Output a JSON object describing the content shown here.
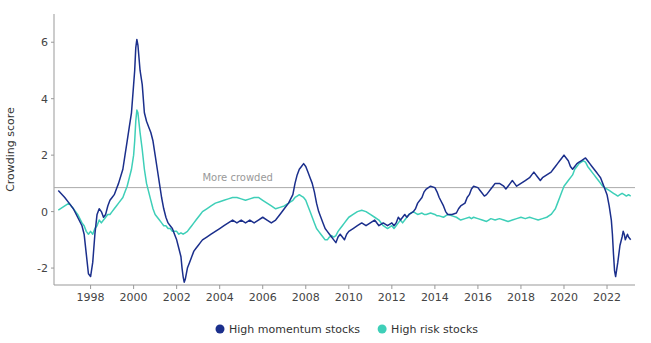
{
  "chart_data": {
    "type": "line",
    "y_label": "Crowding score",
    "annotations": [
      {
        "text": "More crowded",
        "x": 2003.2,
        "y": 1.0
      }
    ],
    "hline_y": 0.85,
    "xlim": [
      1996.3,
      2023.3
    ],
    "xticks": [
      1998,
      2000,
      2002,
      2004,
      2006,
      2008,
      2010,
      2012,
      2014,
      2016,
      2018,
      2020,
      2022
    ],
    "ylim": [
      -2.6,
      7.0
    ],
    "yticks": [
      -2,
      0,
      2,
      4,
      6
    ],
    "grid": false,
    "legend": "bottom",
    "series": [
      {
        "name": "High momentum stocks",
        "color": "#1B2F8C",
        "x": [
          1996.5,
          1996.8,
          1997.0,
          1997.2,
          1997.4,
          1997.6,
          1997.7,
          1997.8,
          1997.9,
          1998.0,
          1998.1,
          1998.2,
          1998.3,
          1998.4,
          1998.5,
          1998.6,
          1998.7,
          1998.8,
          1998.9,
          1999.0,
          1999.1,
          1999.2,
          1999.3,
          1999.5,
          1999.6,
          1999.7,
          1999.8,
          1999.9,
          2000.0,
          2000.05,
          2000.1,
          2000.15,
          2000.2,
          2000.3,
          2000.4,
          2000.5,
          2000.6,
          2000.7,
          2000.8,
          2000.9,
          2001.0,
          2001.1,
          2001.2,
          2001.3,
          2001.4,
          2001.5,
          2001.6,
          2001.7,
          2001.8,
          2001.9,
          2002.0,
          2002.1,
          2002.2,
          2002.25,
          2002.3,
          2002.35,
          2002.4,
          2002.5,
          2002.6,
          2002.7,
          2002.8,
          2002.9,
          2003.0,
          2003.1,
          2003.2,
          2003.4,
          2003.6,
          2003.8,
          2004.0,
          2004.2,
          2004.4,
          2004.6,
          2004.8,
          2005.0,
          2005.2,
          2005.4,
          2005.6,
          2005.8,
          2006.0,
          2006.2,
          2006.4,
          2006.6,
          2006.8,
          2007.0,
          2007.2,
          2007.4,
          2007.5,
          2007.6,
          2007.7,
          2007.8,
          2007.9,
          2008.0,
          2008.1,
          2008.2,
          2008.3,
          2008.4,
          2008.5,
          2008.6,
          2008.7,
          2008.8,
          2008.9,
          2009.0,
          2009.1,
          2009.2,
          2009.3,
          2009.4,
          2009.5,
          2009.6,
          2009.7,
          2009.8,
          2009.9,
          2010.0,
          2010.2,
          2010.4,
          2010.6,
          2010.8,
          2011.0,
          2011.2,
          2011.4,
          2011.6,
          2011.8,
          2012.0,
          2012.1,
          2012.2,
          2012.3,
          2012.4,
          2012.5,
          2012.6,
          2012.7,
          2012.8,
          2013.0,
          2013.1,
          2013.2,
          2013.4,
          2013.5,
          2013.6,
          2013.8,
          2014.0,
          2014.1,
          2014.2,
          2014.4,
          2014.5,
          2014.6,
          2014.8,
          2015.0,
          2015.1,
          2015.2,
          2015.4,
          2015.5,
          2015.6,
          2015.7,
          2015.8,
          2016.0,
          2016.1,
          2016.2,
          2016.3,
          2016.4,
          2016.5,
          2016.6,
          2016.7,
          2016.8,
          2017.0,
          2017.2,
          2017.3,
          2017.4,
          2017.5,
          2017.6,
          2017.7,
          2017.8,
          2018.0,
          2018.2,
          2018.4,
          2018.5,
          2018.6,
          2018.8,
          2018.9,
          2019.0,
          2019.2,
          2019.4,
          2019.5,
          2019.6,
          2019.7,
          2019.8,
          2019.9,
          2020.0,
          2020.1,
          2020.2,
          2020.3,
          2020.4,
          2020.5,
          2020.6,
          2020.7,
          2020.8,
          2020.9,
          2021.0,
          2021.1,
          2021.2,
          2021.3,
          2021.4,
          2021.5,
          2021.6,
          2021.7,
          2021.8,
          2021.9,
          2022.0,
          2022.1,
          2022.2,
          2022.25,
          2022.3,
          2022.35,
          2022.4,
          2022.5,
          2022.6,
          2022.7,
          2022.75,
          2022.8,
          2022.85,
          2022.9,
          2022.95,
          2023.0,
          2023.1
        ],
        "values": [
          0.75,
          0.5,
          0.3,
          0.1,
          -0.2,
          -0.5,
          -0.8,
          -1.5,
          -2.2,
          -2.3,
          -1.8,
          -0.8,
          -0.1,
          0.1,
          0.0,
          -0.2,
          -0.1,
          0.2,
          0.4,
          0.5,
          0.6,
          0.8,
          1.0,
          1.5,
          2.0,
          2.5,
          3.0,
          3.5,
          4.5,
          5.0,
          5.8,
          6.1,
          5.9,
          5.0,
          4.5,
          3.5,
          3.2,
          3.0,
          2.8,
          2.5,
          2.0,
          1.5,
          1.0,
          0.5,
          0.1,
          -0.2,
          -0.4,
          -0.5,
          -0.6,
          -0.8,
          -1.0,
          -1.3,
          -1.6,
          -2.0,
          -2.3,
          -2.5,
          -2.4,
          -2.0,
          -1.8,
          -1.6,
          -1.4,
          -1.3,
          -1.2,
          -1.1,
          -1.0,
          -0.9,
          -0.8,
          -0.7,
          -0.6,
          -0.5,
          -0.4,
          -0.3,
          -0.4,
          -0.3,
          -0.4,
          -0.3,
          -0.4,
          -0.3,
          -0.2,
          -0.3,
          -0.4,
          -0.3,
          -0.1,
          0.1,
          0.3,
          0.6,
          1.0,
          1.3,
          1.5,
          1.6,
          1.7,
          1.6,
          1.4,
          1.2,
          1.0,
          0.7,
          0.3,
          0.0,
          -0.2,
          -0.4,
          -0.6,
          -0.7,
          -0.8,
          -0.9,
          -1.0,
          -1.1,
          -0.9,
          -0.8,
          -0.9,
          -1.0,
          -0.8,
          -0.7,
          -0.6,
          -0.5,
          -0.4,
          -0.5,
          -0.4,
          -0.3,
          -0.5,
          -0.4,
          -0.5,
          -0.4,
          -0.5,
          -0.4,
          -0.2,
          -0.3,
          -0.2,
          -0.1,
          -0.2,
          -0.1,
          0.0,
          0.1,
          0.3,
          0.5,
          0.7,
          0.8,
          0.9,
          0.85,
          0.7,
          0.5,
          0.2,
          0.0,
          -0.1,
          -0.1,
          -0.05,
          0.1,
          0.2,
          0.3,
          0.5,
          0.6,
          0.8,
          0.9,
          0.85,
          0.75,
          0.65,
          0.55,
          0.6,
          0.7,
          0.8,
          0.9,
          1.0,
          1.0,
          0.9,
          0.8,
          0.9,
          1.0,
          1.1,
          1.0,
          0.9,
          1.0,
          1.1,
          1.2,
          1.3,
          1.4,
          1.2,
          1.1,
          1.2,
          1.3,
          1.4,
          1.5,
          1.6,
          1.7,
          1.8,
          1.9,
          2.0,
          1.9,
          1.8,
          1.6,
          1.5,
          1.6,
          1.7,
          1.75,
          1.8,
          1.85,
          1.9,
          1.8,
          1.7,
          1.6,
          1.5,
          1.4,
          1.3,
          1.2,
          1.0,
          0.8,
          0.6,
          0.2,
          -0.3,
          -0.8,
          -1.5,
          -2.1,
          -2.3,
          -1.8,
          -1.2,
          -0.9,
          -0.7,
          -0.8,
          -1.0,
          -0.9,
          -0.8,
          -0.9,
          -1.0
        ]
      },
      {
        "name": "High risk stocks",
        "color": "#3ECFB8",
        "x": [
          1996.5,
          1996.8,
          1997.0,
          1997.2,
          1997.4,
          1997.6,
          1997.7,
          1997.8,
          1997.9,
          1998.0,
          1998.1,
          1998.2,
          1998.3,
          1998.4,
          1998.5,
          1998.6,
          1998.7,
          1998.8,
          1998.9,
          1999.0,
          1999.1,
          1999.2,
          1999.3,
          1999.5,
          1999.6,
          1999.7,
          1999.8,
          1999.9,
          2000.0,
          2000.05,
          2000.1,
          2000.15,
          2000.2,
          2000.3,
          2000.4,
          2000.5,
          2000.6,
          2000.7,
          2000.8,
          2000.9,
          2001.0,
          2001.1,
          2001.2,
          2001.3,
          2001.4,
          2001.5,
          2001.6,
          2001.7,
          2001.8,
          2001.9,
          2002.0,
          2002.1,
          2002.2,
          2002.3,
          2002.4,
          2002.5,
          2002.6,
          2002.7,
          2002.8,
          2002.9,
          2003.0,
          2003.1,
          2003.2,
          2003.4,
          2003.6,
          2003.8,
          2004.0,
          2004.2,
          2004.4,
          2004.6,
          2004.8,
          2005.0,
          2005.2,
          2005.4,
          2005.6,
          2005.8,
          2006.0,
          2006.2,
          2006.4,
          2006.6,
          2006.8,
          2007.0,
          2007.2,
          2007.4,
          2007.5,
          2007.6,
          2007.7,
          2007.8,
          2007.9,
          2008.0,
          2008.1,
          2008.2,
          2008.3,
          2008.4,
          2008.5,
          2008.6,
          2008.7,
          2008.8,
          2008.9,
          2009.0,
          2009.1,
          2009.2,
          2009.3,
          2009.4,
          2009.5,
          2009.6,
          2009.7,
          2009.8,
          2009.9,
          2010.0,
          2010.2,
          2010.4,
          2010.6,
          2010.8,
          2011.0,
          2011.2,
          2011.4,
          2011.6,
          2011.8,
          2012.0,
          2012.1,
          2012.2,
          2012.3,
          2012.4,
          2012.5,
          2012.6,
          2012.7,
          2012.8,
          2013.0,
          2013.1,
          2013.2,
          2013.4,
          2013.5,
          2013.6,
          2013.8,
          2014.0,
          2014.1,
          2014.2,
          2014.4,
          2014.5,
          2014.6,
          2014.8,
          2015.0,
          2015.2,
          2015.4,
          2015.6,
          2015.7,
          2015.8,
          2016.0,
          2016.2,
          2016.4,
          2016.5,
          2016.6,
          2016.8,
          2017.0,
          2017.2,
          2017.4,
          2017.6,
          2017.8,
          2018.0,
          2018.2,
          2018.4,
          2018.6,
          2018.8,
          2019.0,
          2019.2,
          2019.4,
          2019.5,
          2019.6,
          2019.7,
          2019.8,
          2019.9,
          2020.0,
          2020.2,
          2020.4,
          2020.5,
          2020.6,
          2020.7,
          2020.8,
          2020.9,
          2021.0,
          2021.1,
          2021.2,
          2021.3,
          2021.4,
          2021.5,
          2021.6,
          2021.7,
          2021.8,
          2021.9,
          2022.0,
          2022.1,
          2022.2,
          2022.3,
          2022.4,
          2022.5,
          2022.6,
          2022.7,
          2022.8,
          2022.9,
          2023.0,
          2023.1
        ],
        "values": [
          0.05,
          0.2,
          0.3,
          0.1,
          -0.1,
          -0.4,
          -0.5,
          -0.7,
          -0.8,
          -0.7,
          -0.8,
          -0.6,
          -0.5,
          -0.3,
          -0.4,
          -0.3,
          -0.2,
          -0.1,
          -0.1,
          0.0,
          0.1,
          0.2,
          0.3,
          0.5,
          0.7,
          0.9,
          1.2,
          1.5,
          2.0,
          2.5,
          3.2,
          3.6,
          3.5,
          2.8,
          2.2,
          1.5,
          1.0,
          0.7,
          0.4,
          0.1,
          -0.1,
          -0.2,
          -0.3,
          -0.4,
          -0.5,
          -0.5,
          -0.6,
          -0.6,
          -0.7,
          -0.7,
          -0.7,
          -0.8,
          -0.75,
          -0.8,
          -0.75,
          -0.7,
          -0.6,
          -0.5,
          -0.4,
          -0.3,
          -0.2,
          -0.1,
          0.0,
          0.1,
          0.2,
          0.3,
          0.35,
          0.4,
          0.45,
          0.5,
          0.5,
          0.45,
          0.4,
          0.45,
          0.5,
          0.5,
          0.4,
          0.3,
          0.2,
          0.1,
          0.15,
          0.2,
          0.3,
          0.4,
          0.5,
          0.55,
          0.6,
          0.55,
          0.5,
          0.4,
          0.2,
          0.0,
          -0.2,
          -0.4,
          -0.6,
          -0.7,
          -0.8,
          -0.9,
          -1.0,
          -1.0,
          -0.9,
          -0.85,
          -0.9,
          -0.85,
          -0.7,
          -0.6,
          -0.5,
          -0.4,
          -0.3,
          -0.2,
          -0.1,
          0.0,
          0.05,
          0.0,
          -0.1,
          -0.2,
          -0.3,
          -0.5,
          -0.6,
          -0.5,
          -0.6,
          -0.5,
          -0.4,
          -0.3,
          -0.4,
          -0.3,
          -0.2,
          -0.1,
          0.0,
          -0.05,
          -0.1,
          -0.05,
          -0.1,
          -0.1,
          -0.05,
          -0.1,
          -0.15,
          -0.15,
          -0.2,
          -0.15,
          -0.1,
          -0.15,
          -0.2,
          -0.3,
          -0.25,
          -0.2,
          -0.25,
          -0.2,
          -0.25,
          -0.3,
          -0.35,
          -0.3,
          -0.25,
          -0.3,
          -0.25,
          -0.3,
          -0.35,
          -0.3,
          -0.25,
          -0.2,
          -0.25,
          -0.2,
          -0.25,
          -0.3,
          -0.25,
          -0.2,
          -0.1,
          0.0,
          0.1,
          0.3,
          0.5,
          0.7,
          0.9,
          1.1,
          1.3,
          1.5,
          1.6,
          1.7,
          1.75,
          1.8,
          1.75,
          1.6,
          1.5,
          1.4,
          1.3,
          1.2,
          1.1,
          1.0,
          0.9,
          0.85,
          0.8,
          0.75,
          0.7,
          0.65,
          0.6,
          0.55,
          0.6,
          0.65,
          0.6,
          0.55,
          0.6,
          0.55
        ]
      }
    ]
  }
}
